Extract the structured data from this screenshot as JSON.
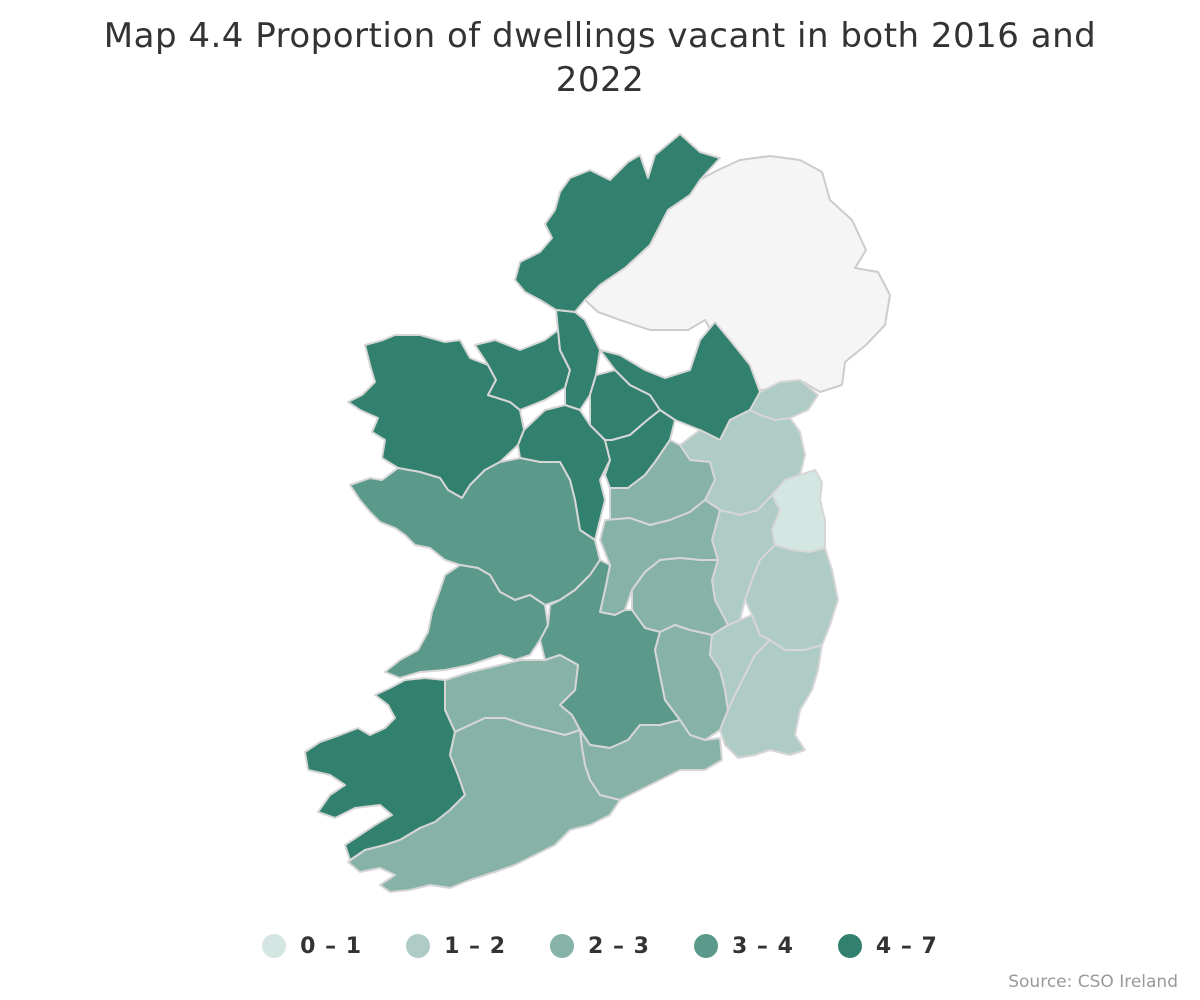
{
  "title": "Map 4.4 Proportion of dwellings vacant in both 2016 and 2022",
  "source": "Source: CSO Ireland",
  "colors": {
    "c0_1": "#d3e6e2",
    "c1_2": "#aecbc5",
    "c2_3": "#87b2a8",
    "c3_4": "#5b9a8a",
    "c4_7": "#32806e",
    "no_data": "#f5f5f5"
  },
  "legend": [
    {
      "label": "0 – 1",
      "color": "#d3e6e2"
    },
    {
      "label": "1 – 2",
      "color": "#aecbc5"
    },
    {
      "label": "2 – 3",
      "color": "#87b2a8"
    },
    {
      "label": "3 – 4",
      "color": "#5b9a8a"
    },
    {
      "label": "4 – 7",
      "color": "#32806e"
    }
  ]
}
